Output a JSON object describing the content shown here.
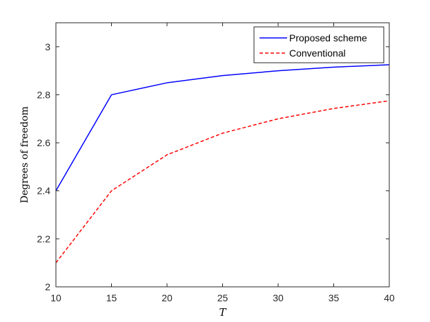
{
  "chart_data": {
    "type": "line",
    "title": "",
    "xlabel": "T",
    "ylabel": "Degrees of freedom",
    "x": [
      10,
      15,
      20,
      25,
      30,
      35,
      40
    ],
    "xlim": [
      10,
      40
    ],
    "ylim": [
      2,
      3.1
    ],
    "xticks": [
      10,
      15,
      20,
      25,
      30,
      35,
      40
    ],
    "yticks": [
      2,
      2.2,
      2.4,
      2.6,
      2.8,
      3
    ],
    "xtick_labels": [
      "10",
      "15",
      "20",
      "25",
      "30",
      "35",
      "40"
    ],
    "ytick_labels": [
      "2",
      "2.2",
      "2.4",
      "2.6",
      "2.8",
      "3"
    ],
    "grid": false,
    "legend_position": "top-right",
    "series": [
      {
        "name": "Proposed scheme",
        "values": [
          2.4,
          2.8,
          2.85,
          2.88,
          2.9,
          2.915,
          2.925
        ],
        "color": "#0000ff",
        "style": "solid"
      },
      {
        "name": "Conventional",
        "values": [
          2.1,
          2.4,
          2.55,
          2.64,
          2.7,
          2.743,
          2.775
        ],
        "color": "#ff0000",
        "style": "dashed"
      }
    ]
  }
}
